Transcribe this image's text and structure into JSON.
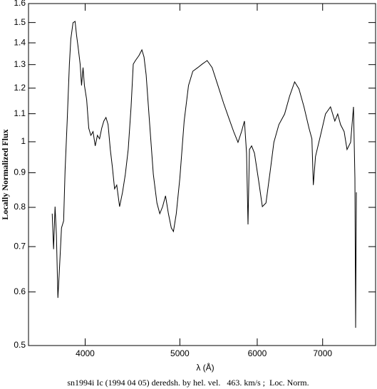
{
  "chart_data": {
    "type": "line",
    "xlabel": "λ (Å)",
    "ylabel": "Locally Normalized Flux",
    "caption": "sn1994i Ic (1994 04 05) deredsh. by hel. vel.   463. km/s ;  Loc. Norm.",
    "xscale": "log",
    "yscale": "log",
    "xlim": [
      3500,
      7930
    ],
    "ylim": [
      0.5,
      1.6
    ],
    "xticks": [
      4000,
      5000,
      6000,
      7000
    ],
    "yticks": [
      0.5,
      0.6,
      0.7,
      0.8,
      0.9,
      1,
      1.1,
      1.2,
      1.3,
      1.4,
      1.5,
      1.6
    ],
    "color": "#000000",
    "x": [
      3701,
      3713,
      3726,
      3738,
      3751,
      3764,
      3783,
      3802,
      3815,
      3834,
      3854,
      3867,
      3887,
      3906,
      3920,
      3933,
      3953,
      3966,
      3980,
      3993,
      4014,
      4034,
      4054,
      4075,
      4096,
      4117,
      4138,
      4159,
      4180,
      4201,
      4222,
      4244,
      4265,
      4287,
      4309,
      4338,
      4368,
      4397,
      4427,
      4457,
      4480,
      4503,
      4541,
      4572,
      4595,
      4618,
      4657,
      4697,
      4737,
      4769,
      4801,
      4834,
      4867,
      4900,
      4925,
      4958,
      5000,
      5051,
      5103,
      5155,
      5216,
      5269,
      5332,
      5395,
      5469,
      5543,
      5609,
      5676,
      5734,
      5782,
      5822,
      5851,
      5871,
      5891,
      5921,
      5961,
      6022,
      6073,
      6125,
      6187,
      6240,
      6314,
      6400,
      6476,
      6553,
      6620,
      6699,
      6779,
      6825,
      6848,
      6883,
      6965,
      7047,
      7131,
      7204,
      7253,
      7302,
      7364,
      7414,
      7477,
      7528,
      7553,
      7566,
      7579
    ],
    "values": [
      0.783,
      0.694,
      0.802,
      0.728,
      0.588,
      0.645,
      0.746,
      0.764,
      0.906,
      1.073,
      1.302,
      1.418,
      1.499,
      1.506,
      1.435,
      1.384,
      1.302,
      1.211,
      1.287,
      1.211,
      1.154,
      1.047,
      1.022,
      1.035,
      0.986,
      1.022,
      1.01,
      1.047,
      1.073,
      1.086,
      1.06,
      0.974,
      0.917,
      0.852,
      0.863,
      0.802,
      0.842,
      0.895,
      0.974,
      1.126,
      1.302,
      1.318,
      1.341,
      1.367,
      1.334,
      1.256,
      1.06,
      0.895,
      0.812,
      0.783,
      0.802,
      0.832,
      0.783,
      0.746,
      0.737,
      0.783,
      0.884,
      1.073,
      1.211,
      1.271,
      1.287,
      1.302,
      1.318,
      1.287,
      1.211,
      1.14,
      1.086,
      1.035,
      0.998,
      1.035,
      1.073,
      0.962,
      0.755,
      0.974,
      0.986,
      0.962,
      0.873,
      0.802,
      0.812,
      0.906,
      0.998,
      1.06,
      1.099,
      1.168,
      1.226,
      1.197,
      1.126,
      1.047,
      1.01,
      0.863,
      0.951,
      1.022,
      1.099,
      1.126,
      1.073,
      1.099,
      1.06,
      1.035,
      0.974,
      0.998,
      1.126,
      0.884,
      0.531,
      0.842
    ]
  }
}
